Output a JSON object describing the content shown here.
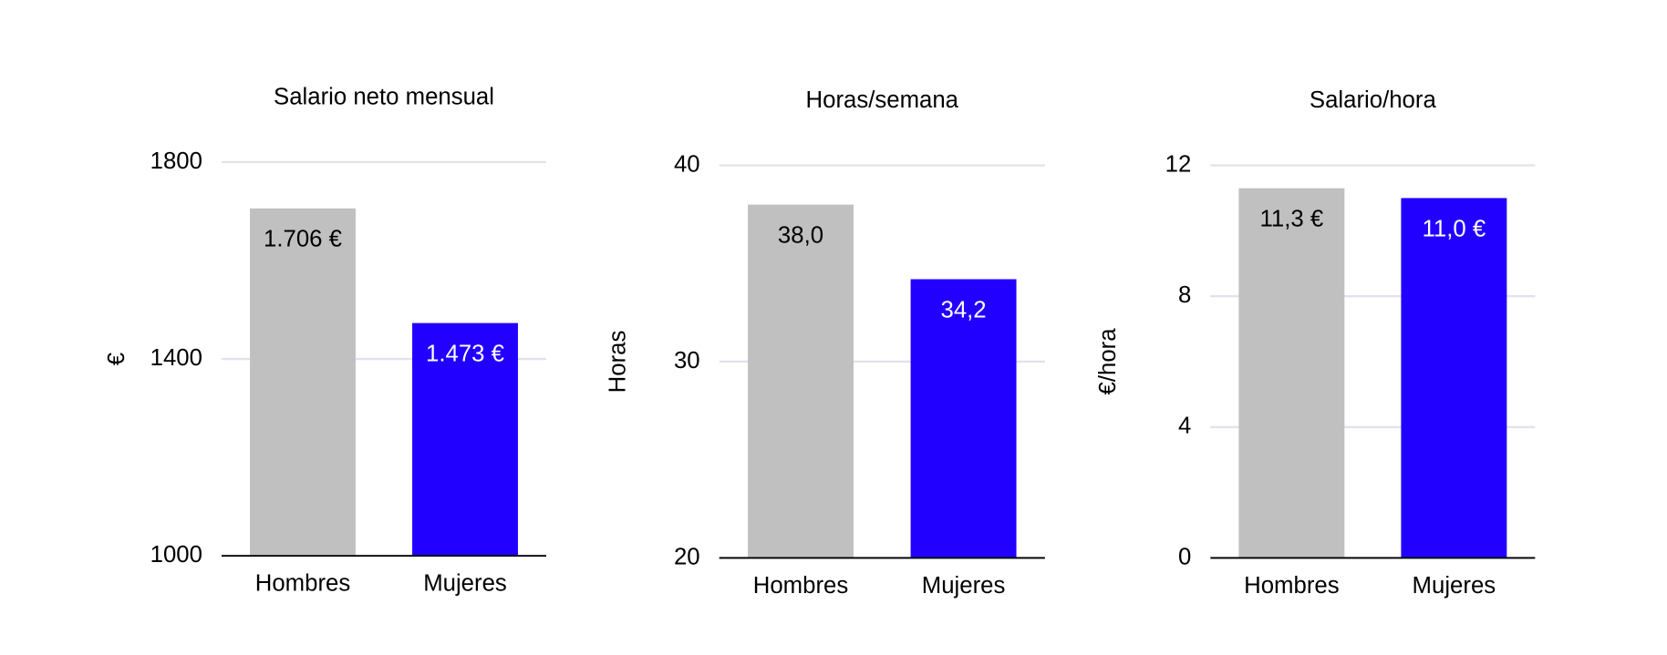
{
  "chart_data": [
    {
      "type": "bar",
      "title": "Salario neto mensual",
      "y_label": "€",
      "categories": [
        "Hombres",
        "Mujeres"
      ],
      "values": [
        1706,
        1473
      ],
      "value_labels": [
        "1.706 €",
        "1.473 €"
      ],
      "colors": [
        "#c0c0c0",
        "#2200ff"
      ],
      "label_colors": [
        "#000000",
        "#ffffff"
      ],
      "ylim": [
        1000,
        1800
      ],
      "yticks": [
        1000,
        1400,
        1800
      ],
      "grid": true
    },
    {
      "type": "bar",
      "title": "Horas/semana",
      "y_label": "Horas",
      "categories": [
        "Hombres",
        "Mujeres"
      ],
      "values": [
        38.0,
        34.2
      ],
      "value_labels": [
        "38,0",
        "34,2"
      ],
      "colors": [
        "#c0c0c0",
        "#2200ff"
      ],
      "label_colors": [
        "#000000",
        "#ffffff"
      ],
      "ylim": [
        20,
        40
      ],
      "yticks": [
        20,
        30,
        40
      ],
      "grid": true
    },
    {
      "type": "bar",
      "title": "Salario/hora",
      "y_label": "€/hora",
      "categories": [
        "Hombres",
        "Mujeres"
      ],
      "values": [
        11.3,
        11.0
      ],
      "value_labels": [
        "11,3 €",
        "11,0 €"
      ],
      "colors": [
        "#c0c0c0",
        "#2200ff"
      ],
      "label_colors": [
        "#000000",
        "#ffffff"
      ],
      "ylim": [
        0,
        12
      ],
      "yticks": [
        0,
        4,
        8,
        12
      ],
      "grid": true
    }
  ]
}
